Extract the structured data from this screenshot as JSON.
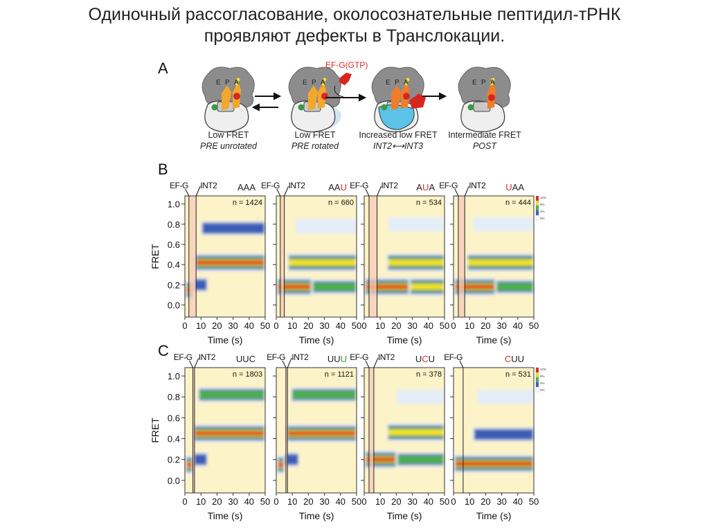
{
  "title": {
    "line1": "Одиночный рассогласование, околосознательные пептидил-тРНК",
    "line2": "проявляют дефекты в Транслокации."
  },
  "panel_a": {
    "label": "A",
    "ef_g_label": "EF-G(GTP)",
    "site_letters": [
      "E",
      "P",
      "A"
    ],
    "states": [
      {
        "title": "Low FRET",
        "subtitle": "PRE unrotated"
      },
      {
        "title": "Low FRET",
        "subtitle": "PRE rotated"
      },
      {
        "title": "Increased low FRET",
        "subtitle": "INT2⟷INT3"
      },
      {
        "title": "Intermediate FRET",
        "subtitle": "POST"
      }
    ]
  },
  "colors": {
    "background": "#fdf3c8",
    "levels": [
      "#e4eef8",
      "#3b5db6",
      "#4bb04a",
      "#f1e02c",
      "#e0261b"
    ],
    "highlight_red": "#d3312b",
    "highlight_green": "#3a9a45",
    "interval_shade": "#f6c7b8"
  },
  "chart_data": [
    {
      "type": "heatmap",
      "panel": "B",
      "ylabel": "FRET",
      "xlabel": "Time (s)",
      "xlim": [
        0,
        50
      ],
      "ylim": [
        -0.12,
        1.08
      ],
      "xticks": [
        "0",
        "10",
        "20",
        "30",
        "40",
        "50"
      ],
      "yticks": [
        "0.0",
        "0.2",
        "0.4",
        "0.6",
        "0.8",
        "1.0"
      ],
      "colorbar": [
        "12%",
        "8%",
        "4%",
        "0%"
      ],
      "marker_labels": {
        "efg": "EF-G",
        "int2": "INT2"
      },
      "plots": [
        {
          "codon": [
            "AAA",
            "",
            ""
          ],
          "hi_color": "red",
          "n": "n = 1424",
          "efg_t": 2.5,
          "int2_t": 7,
          "bands": [
            [
              0.15,
              0,
              5,
              5
            ],
            [
              0.2,
              5,
              14,
              2
            ],
            [
              0.42,
              6,
              50,
              5
            ],
            [
              0.76,
              10,
              50,
              2
            ]
          ]
        },
        {
          "codon": [
            "AA",
            "U",
            ""
          ],
          "hi_color": "red",
          "n": "n = 660",
          "efg_t": 2.5,
          "int2_t": 5,
          "bands": [
            [
              0.18,
              0,
              22,
              5
            ],
            [
              0.18,
              22,
              50,
              3
            ],
            [
              0.42,
              7,
              50,
              4
            ],
            [
              0.78,
              12,
              50,
              1
            ]
          ]
        },
        {
          "codon": [
            "A",
            "U",
            "A"
          ],
          "hi_color": "red",
          "n": "n = 534",
          "efg_t": 3,
          "int2_t": 8,
          "bands": [
            [
              0.18,
              0,
              28,
              5
            ],
            [
              0.18,
              28,
              50,
              4
            ],
            [
              0.42,
              14,
              50,
              4
            ],
            [
              0.8,
              15,
              50,
              1
            ]
          ]
        },
        {
          "codon": [
            "",
            "U",
            "AA"
          ],
          "hi_color": "red",
          "n": "n = 444",
          "efg_t": 3,
          "int2_t": 7,
          "bands": [
            [
              0.18,
              0,
              26,
              5
            ],
            [
              0.18,
              26,
              50,
              3
            ],
            [
              0.42,
              8,
              50,
              4
            ],
            [
              0.8,
              12,
              50,
              1
            ]
          ]
        }
      ]
    },
    {
      "type": "heatmap",
      "panel": "C",
      "ylabel": "FRET",
      "xlabel": "Time (s)",
      "xlim": [
        0,
        50
      ],
      "ylim": [
        -0.12,
        1.08
      ],
      "xticks": [
        "0",
        "10",
        "20",
        "30",
        "40",
        "50"
      ],
      "yticks": [
        "0.0",
        "0.2",
        "0.4",
        "0.6",
        "0.8",
        "1.0"
      ],
      "colorbar": [
        "12%",
        "8%",
        "4%",
        "0%"
      ],
      "marker_labels": {
        "efg": "EF-G",
        "int2": "INT2"
      },
      "plots": [
        {
          "codon": [
            "UUC",
            "",
            ""
          ],
          "hi_color": "red",
          "n": "n = 1803",
          "efg_t": 5,
          "int2_t": 6,
          "bands": [
            [
              0.15,
              0,
              5,
              5
            ],
            [
              0.2,
              5,
              14,
              2
            ],
            [
              0.45,
              5,
              50,
              5
            ],
            [
              0.82,
              8,
              50,
              3
            ]
          ]
        },
        {
          "codon": [
            "UU",
            "U",
            ""
          ],
          "hi_color": "green",
          "n": "n = 1121",
          "efg_t": 6,
          "int2_t": 7,
          "bands": [
            [
              0.15,
              0,
              5,
              5
            ],
            [
              0.2,
              5,
              14,
              2
            ],
            [
              0.45,
              6,
              50,
              5
            ],
            [
              0.82,
              9,
              50,
              3
            ]
          ]
        },
        {
          "codon": [
            "U",
            "C",
            "U"
          ],
          "hi_color": "red",
          "n": "n = 378",
          "efg_t": 3,
          "int2_t": 6,
          "bands": [
            [
              0.2,
              0,
              20,
              5
            ],
            [
              0.2,
              20,
              50,
              3
            ],
            [
              0.46,
              14,
              50,
              4
            ],
            [
              0.8,
              20,
              50,
              1
            ]
          ]
        },
        {
          "codon": [
            "",
            "C",
            "UU"
          ],
          "hi_color": "red",
          "n": "n = 531",
          "efg_t": 6,
          "int2_t": null,
          "bands": [
            [
              0.16,
              0,
              50,
              5
            ],
            [
              0.44,
              12,
              50,
              2
            ],
            [
              0.8,
              15,
              50,
              1
            ]
          ]
        }
      ]
    }
  ]
}
